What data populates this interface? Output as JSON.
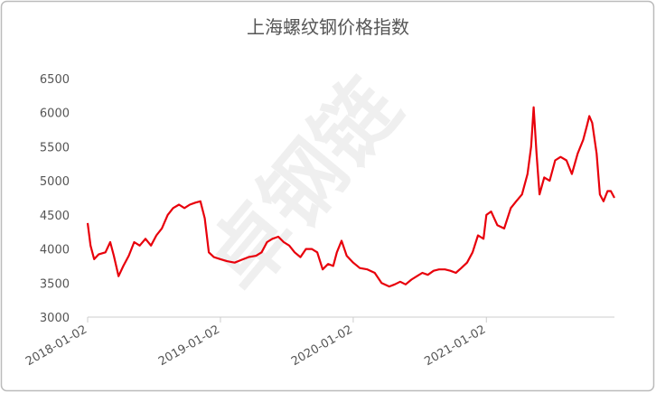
{
  "chart_data": {
    "type": "line",
    "title": "上海螺纹钢价格指数",
    "watermark": "卓钢链",
    "x": [
      "2018-01-02",
      "2018-01-10",
      "2018-01-20",
      "2018-02-01",
      "2018-02-20",
      "2018-03-05",
      "2018-03-15",
      "2018-03-28",
      "2018-04-10",
      "2018-04-25",
      "2018-05-10",
      "2018-05-25",
      "2018-06-10",
      "2018-06-25",
      "2018-07-10",
      "2018-07-25",
      "2018-08-10",
      "2018-08-25",
      "2018-09-10",
      "2018-09-25",
      "2018-10-10",
      "2018-10-25",
      "2018-11-08",
      "2018-11-20",
      "2018-12-01",
      "2018-12-15",
      "2019-01-02",
      "2019-01-20",
      "2019-02-10",
      "2019-03-01",
      "2019-03-20",
      "2019-04-10",
      "2019-04-25",
      "2019-05-10",
      "2019-05-25",
      "2019-06-10",
      "2019-06-25",
      "2019-07-10",
      "2019-07-25",
      "2019-08-10",
      "2019-08-25",
      "2019-09-10",
      "2019-09-25",
      "2019-10-10",
      "2019-10-25",
      "2019-11-08",
      "2019-11-18",
      "2019-12-01",
      "2019-12-15",
      "2020-01-02",
      "2020-01-20",
      "2020-02-10",
      "2020-03-01",
      "2020-03-20",
      "2020-04-10",
      "2020-04-25",
      "2020-05-10",
      "2020-05-25",
      "2020-06-10",
      "2020-06-25",
      "2020-07-10",
      "2020-07-25",
      "2020-08-10",
      "2020-08-25",
      "2020-09-10",
      "2020-09-25",
      "2020-10-10",
      "2020-10-25",
      "2020-11-10",
      "2020-11-25",
      "2020-12-10",
      "2020-12-25",
      "2021-01-02",
      "2021-01-15",
      "2021-02-01",
      "2021-02-20",
      "2021-03-10",
      "2021-03-25",
      "2021-04-10",
      "2021-04-25",
      "2021-05-05",
      "2021-05-12",
      "2021-05-20",
      "2021-05-28",
      "2021-06-10",
      "2021-06-25",
      "2021-07-10",
      "2021-07-25",
      "2021-08-10",
      "2021-08-25",
      "2021-09-10",
      "2021-09-25",
      "2021-10-05",
      "2021-10-12",
      "2021-10-20",
      "2021-11-01",
      "2021-11-10",
      "2021-11-20",
      "2021-12-01",
      "2021-12-10",
      "2021-12-20"
    ],
    "series": [
      {
        "name": "上海螺纹钢价格指数",
        "color": "#e8000b",
        "values": [
          4380,
          4050,
          3850,
          3920,
          3950,
          4100,
          3900,
          3600,
          3750,
          3900,
          4100,
          4050,
          4150,
          4050,
          4200,
          4300,
          4500,
          4600,
          4650,
          4600,
          4650,
          4680,
          4700,
          4450,
          3950,
          3880,
          3850,
          3820,
          3800,
          3840,
          3880,
          3900,
          3950,
          4100,
          4150,
          4180,
          4100,
          4050,
          3950,
          3880,
          4000,
          4000,
          3950,
          3700,
          3780,
          3750,
          3950,
          4120,
          3900,
          3800,
          3720,
          3700,
          3650,
          3500,
          3450,
          3480,
          3520,
          3480,
          3550,
          3600,
          3650,
          3620,
          3680,
          3700,
          3700,
          3680,
          3650,
          3720,
          3800,
          3950,
          4200,
          4150,
          4500,
          4550,
          4350,
          4300,
          4600,
          4700,
          4800,
          5100,
          5500,
          6080,
          5400,
          4800,
          5050,
          5000,
          5300,
          5350,
          5300,
          5100,
          5400,
          5600,
          5800,
          5950,
          5850,
          5400,
          4800,
          4700,
          4850,
          4850,
          4750
        ]
      }
    ],
    "xlim": [
      "2018-01-02",
      "2021-12-20"
    ],
    "xticks": [
      "2018-01-02",
      "2019-01-02",
      "2020-01-02",
      "2021-01-02"
    ],
    "ylim": [
      3000,
      6500
    ],
    "yticks": [
      3000,
      3500,
      4000,
      4500,
      5000,
      5500,
      6000,
      6500
    ]
  }
}
